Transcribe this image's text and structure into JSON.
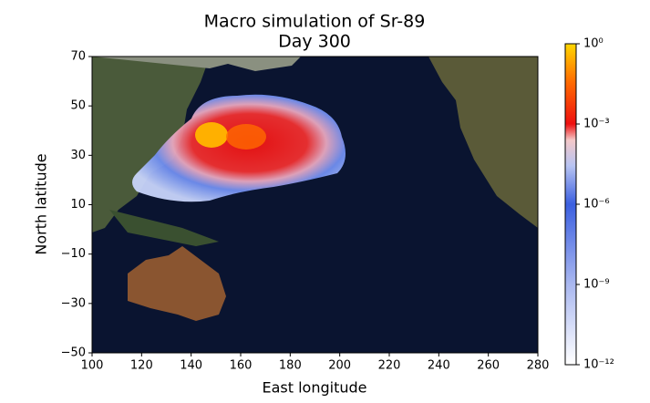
{
  "chart_data": {
    "type": "heatmap",
    "title": "Macro simulation of Sr-89",
    "subtitle": "Day 300",
    "x_label": "East longitude",
    "y_label": "North latitude",
    "xlim": [
      100,
      280
    ],
    "xticks": [
      100,
      120,
      140,
      160,
      180,
      200,
      220,
      240,
      260,
      280
    ],
    "ylim": [
      -50,
      70
    ],
    "yticks": [
      {
        "value": -50,
        "label": "−50"
      },
      {
        "value": -30,
        "label": "−30"
      },
      {
        "value": -10,
        "label": "−10"
      },
      10,
      30,
      50,
      70
    ],
    "colorbar": {
      "log": true,
      "lim": [
        1e-12,
        1
      ],
      "ticks": [
        {
          "value": 1e-12,
          "label": "10⁻¹²"
        },
        {
          "value": 1e-09,
          "label": "10⁻⁹"
        },
        {
          "value": 1e-06,
          "label": "10⁻⁶"
        },
        {
          "value": 0.001,
          "label": "10⁻³"
        },
        {
          "value": 1,
          "label": "10⁰"
        }
      ]
    }
  }
}
